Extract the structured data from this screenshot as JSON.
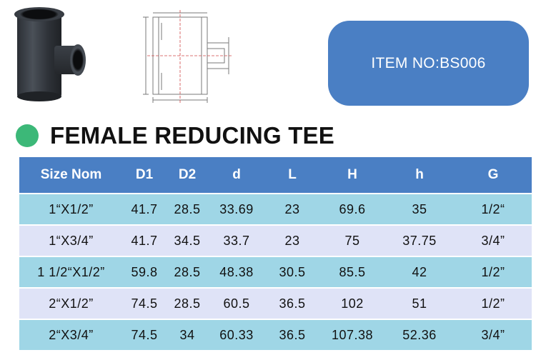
{
  "item_badge": {
    "text": "ITEM NO:BS006"
  },
  "title": "FEMALE REDUCING TEE",
  "colors": {
    "accent_blue": "#4a7fc4",
    "row_cyan": "#9fd6e6",
    "row_lavender": "#dfe3f7",
    "dot_green": "#3cb878"
  },
  "icons": {
    "bullet": "green-dot-icon",
    "photo": "tee-fitting-photo",
    "drawing": "technical-drawing"
  },
  "table": {
    "headers": [
      "Size  Nom",
      "D1",
      "D2",
      "d",
      "L",
      "H",
      "h",
      "G"
    ],
    "rows": [
      [
        "1“X1/2”",
        "41.7",
        "28.5",
        "33.69",
        "23",
        "69.6",
        "35",
        "1/2“"
      ],
      [
        "1“X3/4”",
        "41.7",
        "34.5",
        "33.7",
        "23",
        "75",
        "37.75",
        "3/4”"
      ],
      [
        "1 1/2“X1/2”",
        "59.8",
        "28.5",
        "48.38",
        "30.5",
        "85.5",
        "42",
        "1/2”"
      ],
      [
        "2“X1/2”",
        "74.5",
        "28.5",
        "60.5",
        "36.5",
        "102",
        "51",
        "1/2”"
      ],
      [
        "2“X3/4”",
        "74.5",
        "34",
        "60.33",
        "36.5",
        "107.38",
        "52.36",
        "3/4”"
      ]
    ]
  }
}
